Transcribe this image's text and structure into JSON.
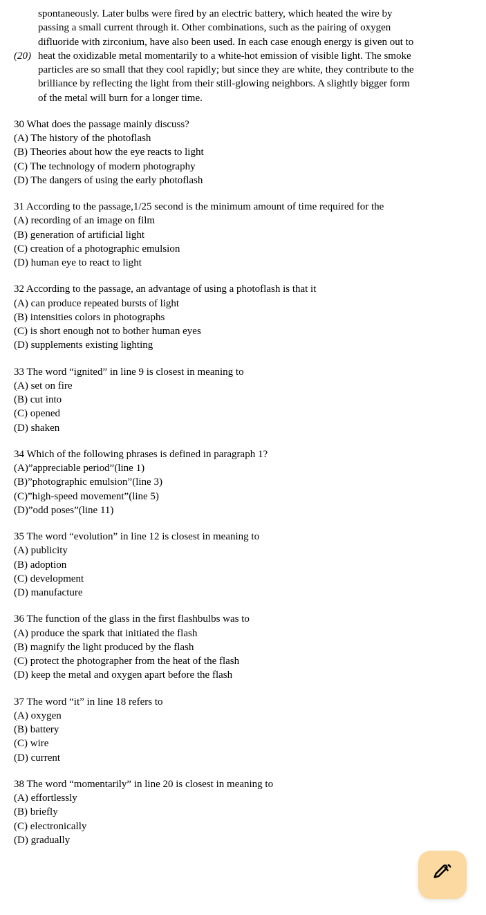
{
  "passage": {
    "lines": [
      {
        "marker": "",
        "text": "spontaneously. Later bulbs were fired by an electric battery, which heated the wire by"
      },
      {
        "marker": "",
        "text": "passing a small current through it. Other combinations, such as the pairing of oxygen"
      },
      {
        "marker": "",
        "text": "difluoride with zirconium, have also been used. In each case enough energy is given out to"
      },
      {
        "marker": "(20)",
        "text": "heat the oxidizable metal momentarily to a white-hot emission of visible light. The smoke"
      },
      {
        "marker": "",
        "text": "particles are so small that they cool rapidly; but since they are white, they contribute to the"
      },
      {
        "marker": "",
        "text": "brilliance by reflecting the light from their still-glowing neighbors. A slightly bigger form"
      },
      {
        "marker": "",
        "text": "of the metal will burn for a longer time."
      }
    ]
  },
  "questions": [
    {
      "q": "30 What does the passage mainly discuss?",
      "opts": [
        "(A) The history of the photoflash",
        "(B) Theories about how the eye reacts to light",
        "(C) The technology of modern photography",
        "(D) The dangers of using the early photoflash"
      ]
    },
    {
      "q": "31 According to the passage,1/25 second is the minimum amount of time required for the",
      "opts": [
        "(A) recording of an image on film",
        "(B) generation of artificial light",
        "(C) creation of a photographic emulsion",
        "(D) human eye to react to light"
      ]
    },
    {
      "q": "32 According to the passage, an advantage of using a photoflash is that it",
      "opts": [
        "(A) can produce repeated bursts of light",
        "(B) intensities colors in photographs",
        "(C) is short enough not to bother human eyes",
        "(D) supplements existing lighting"
      ]
    },
    {
      "q": "33 The word “ignited” in line 9 is closest in meaning to",
      "opts": [
        "(A) set on fire",
        "(B) cut into",
        "(C) opened",
        "(D) shaken"
      ]
    },
    {
      "q": "34 Which of the following phrases is defined in paragraph 1?",
      "opts": [
        "(A)”appreciable period”(line 1)",
        "(B)”photographic emulsion”(line 3)",
        "(C)”high-speed movement”(line 5)",
        "(D)”odd poses”(line 11)"
      ]
    },
    {
      "q": "35 The word “evolution” in line 12 is closest in meaning to",
      "opts": [
        "(A) publicity",
        "(B) adoption",
        "(C) development",
        "(D) manufacture"
      ]
    },
    {
      "q": "36 The function of the glass in the first flashbulbs was to",
      "opts": [
        "(A) produce the spark that initiated the flash",
        "(B) magnify the light produced by the flash",
        "(C) protect the photographer from the heat of the flash",
        "(D) keep the metal and oxygen apart before the flash"
      ]
    },
    {
      "q": "37 The word “it” in line 18 refers to",
      "opts": [
        "(A) oxygen",
        "(B) battery",
        "(C) wire",
        "(D) current"
      ]
    },
    {
      "q": "38 The word “momentarily” in line 20 is closest in meaning to",
      "opts": [
        "(A) effortlessly",
        "(B) briefly",
        "(C) electronically",
        "(D) gradually"
      ]
    }
  ],
  "colors": {
    "fab_bg": "#fbd9a0",
    "text": "#000000",
    "bg": "#ffffff"
  }
}
